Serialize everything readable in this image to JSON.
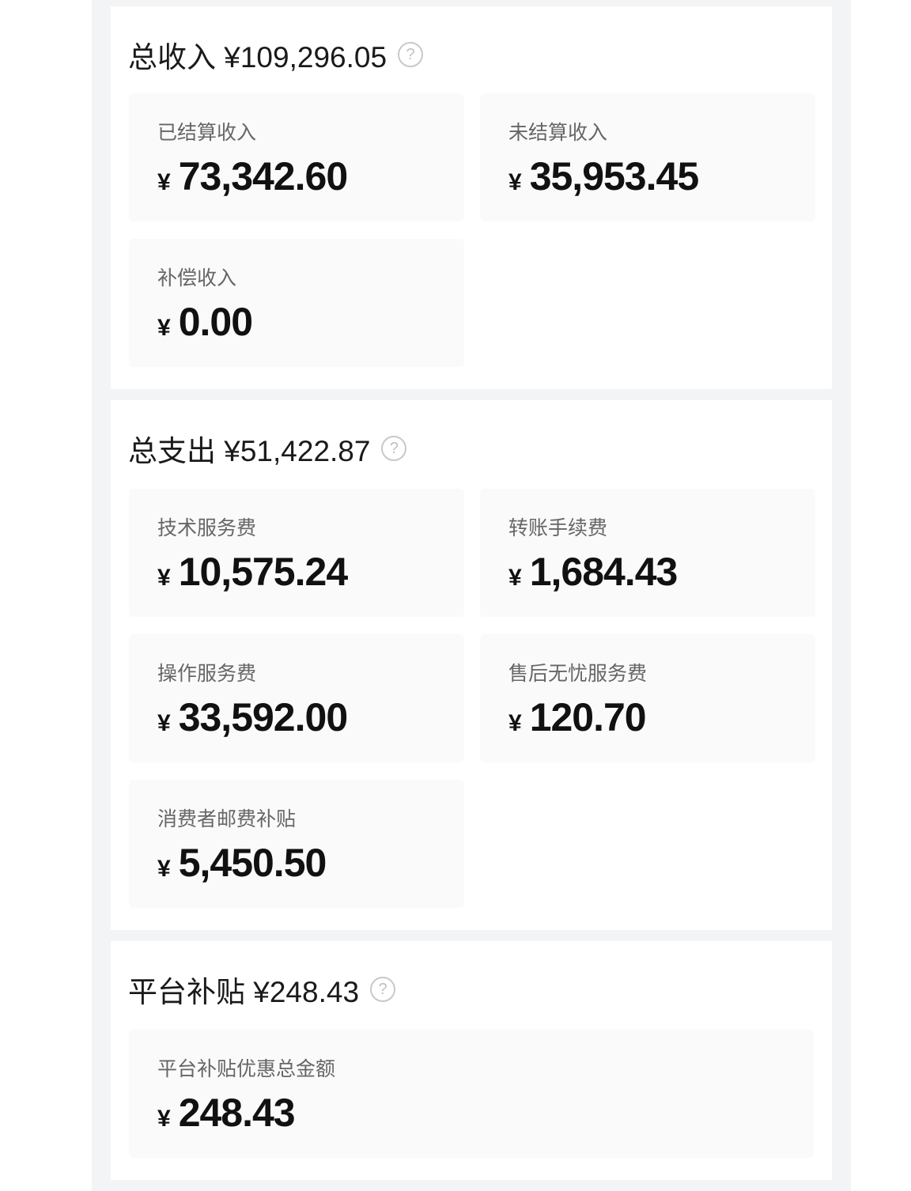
{
  "income": {
    "title": "总收入 ¥109,296.05",
    "items": [
      {
        "label": "已结算收入",
        "currency": "¥",
        "value": "73,342.60"
      },
      {
        "label": "未结算收入",
        "currency": "¥",
        "value": "35,953.45"
      },
      {
        "label": "补偿收入",
        "currency": "¥",
        "value": "0.00"
      }
    ]
  },
  "expense": {
    "title": "总支出 ¥51,422.87",
    "items": [
      {
        "label": "技术服务费",
        "currency": "¥",
        "value": "10,575.24"
      },
      {
        "label": "转账手续费",
        "currency": "¥",
        "value": "1,684.43"
      },
      {
        "label": "操作服务费",
        "currency": "¥",
        "value": "33,592.00"
      },
      {
        "label": "售后无忧服务费",
        "currency": "¥",
        "value": "120.70"
      },
      {
        "label": "消费者邮费补贴",
        "currency": "¥",
        "value": "5,450.50"
      }
    ]
  },
  "subsidy": {
    "title": "平台补贴 ¥248.43",
    "items": [
      {
        "label": "平台补贴优惠总金额",
        "currency": "¥",
        "value": "248.43"
      }
    ]
  },
  "help_glyph": "?"
}
